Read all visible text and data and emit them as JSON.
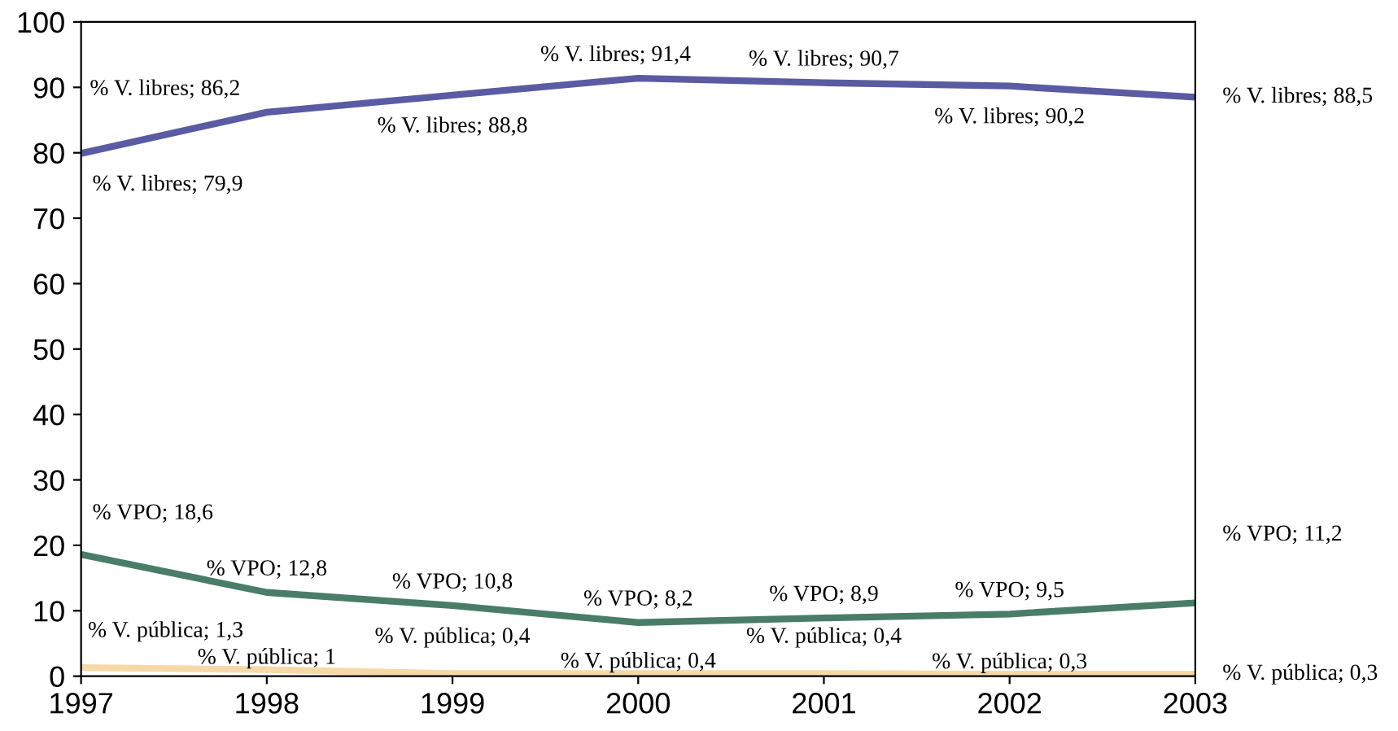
{
  "chart_data": {
    "type": "line",
    "x": [
      1997,
      1998,
      1999,
      2000,
      2001,
      2002,
      2003
    ],
    "series": [
      {
        "color": "#5b5ba3",
        "values": [
          79.9,
          86.2,
          88.8,
          91.4,
          90.7,
          90.2,
          88.5
        ],
        "value_labels": [
          "% V. libres; 79,9",
          "% V. libres; 86,2",
          "% V. libres; 88,8",
          "% V. libres; 91,4",
          "% V. libres; 90,7",
          "% V. libres; 90,2",
          "% V. libres; 88,5"
        ]
      },
      {
        "color": "#4a7d68",
        "values": [
          18.6,
          12.8,
          10.8,
          8.2,
          8.9,
          9.5,
          11.2
        ],
        "value_labels": [
          "% VPO; 18,6",
          "% VPO; 12,8",
          "% VPO; 10,8",
          "% VPO; 8,2",
          "% VPO; 8,9",
          "% VPO; 9,5",
          "% VPO; 11,2"
        ]
      },
      {
        "color": "#f7d9a8",
        "values": [
          1.3,
          1,
          0.4,
          0.4,
          0.4,
          0.3,
          0.3
        ],
        "value_labels": [
          "% V. pública; 1,3",
          "% V. pública; 1",
          "% V. pública; 0,4",
          "% V. pública; 0,4",
          "% V. pública; 0,4",
          "% V. pública; 0,3",
          "% V. pública; 0,3"
        ]
      }
    ],
    "xlim": [
      1997,
      2003
    ],
    "xticks": [
      1997,
      1998,
      1999,
      2000,
      2001,
      2002,
      2003
    ],
    "ylim": [
      0,
      100
    ],
    "yticks": [
      0,
      10,
      20,
      30,
      40,
      50,
      60,
      70,
      80,
      90,
      100
    ],
    "grid": false,
    "legend": false,
    "marker": "none",
    "line_style": "solid"
  }
}
